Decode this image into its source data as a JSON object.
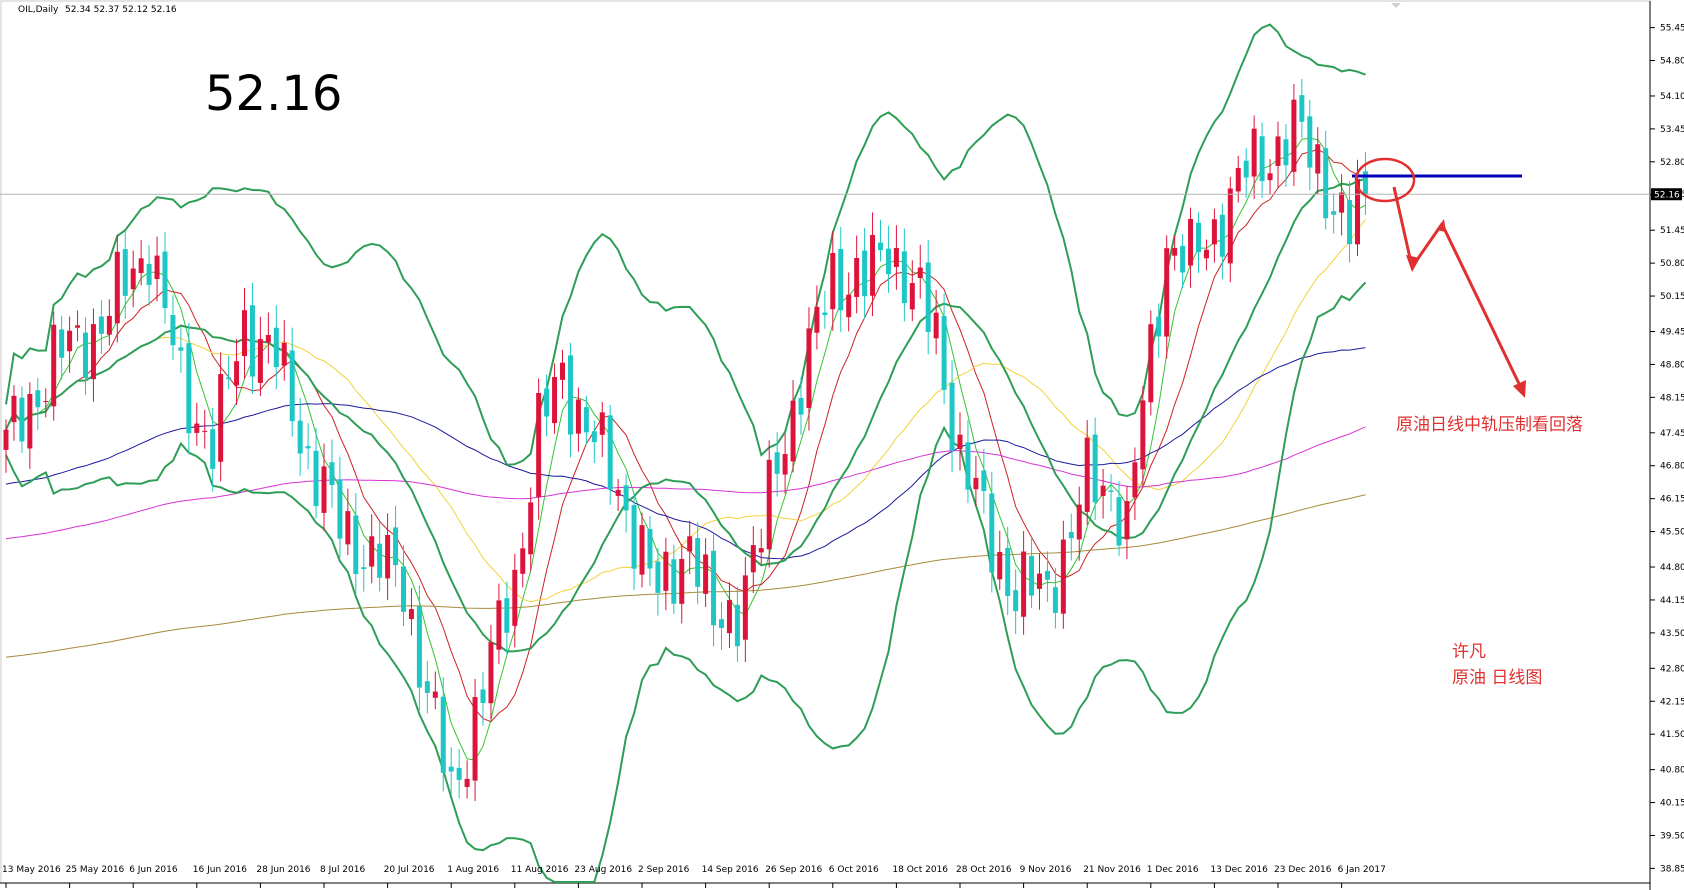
{
  "header": {
    "symbol": "OIL,Daily",
    "ohlc": "52.34 52.37 52.12 52.16"
  },
  "big_price": "52.16",
  "annotations": {
    "main": "原油日线中轨压制看回落",
    "author": "许凡",
    "subtitle": "原油 日线图"
  },
  "colors": {
    "bull_candle": "#dc143c",
    "bear_candle": "#1fc6c6",
    "bollinger": "#2e9e56",
    "ma_fast": "#33c433",
    "ma_red": "#cc2222",
    "ma_yellow": "#f2d23a",
    "ma_blue": "#1a1a9c",
    "ma_magenta": "#d633d6",
    "ma_brown": "#a88a3a",
    "annotation": "#e0302f",
    "resistance_line": "#0000bb"
  },
  "chart_data": {
    "type": "candlestick",
    "y_axis": {
      "ylim": [
        38.6,
        55.8
      ],
      "ticks": [
        "55.45",
        "54.80",
        "54.10",
        "53.45",
        "52.80",
        "52.16",
        "51.45",
        "50.80",
        "50.15",
        "49.45",
        "48.80",
        "48.15",
        "47.45",
        "46.80",
        "46.15",
        "45.50",
        "44.80",
        "44.15",
        "43.50",
        "42.80",
        "42.15",
        "41.50",
        "40.80",
        "40.15",
        "39.50",
        "38.85"
      ],
      "current_price_tag": "52.16"
    },
    "x_axis": {
      "labels": [
        "13 May 2016",
        "25 May 2016",
        "6 Jun 2016",
        "16 Jun 2016",
        "28 Jun 2016",
        "8 Jul 2016",
        "20 Jul 2016",
        "1 Aug 2016",
        "11 Aug 2016",
        "23 Aug 2016",
        "2 Sep 2016",
        "14 Sep 2016",
        "26 Sep 2016",
        "6 Oct 2016",
        "18 Oct 2016",
        "28 Oct 2016",
        "9 Nov 2016",
        "21 Nov 2016",
        "1 Dec 2016",
        "13 Dec 2016",
        "23 Dec 2016",
        "6 Jan 2017"
      ],
      "label_index": [
        0,
        8,
        16,
        24,
        32,
        40,
        48,
        56,
        64,
        72,
        80,
        88,
        96,
        104,
        112,
        120,
        128,
        136,
        144,
        152,
        160,
        168
      ]
    },
    "candle_count": 172,
    "close_anchors": [
      [
        0,
        47.2
      ],
      [
        6,
        48.9
      ],
      [
        12,
        49.6
      ],
      [
        18,
        51.2
      ],
      [
        22,
        48.4
      ],
      [
        26,
        47.2
      ],
      [
        30,
        49.6
      ],
      [
        34,
        48.9
      ],
      [
        38,
        47.0
      ],
      [
        42,
        45.6
      ],
      [
        46,
        45.0
      ],
      [
        50,
        44.5
      ],
      [
        53,
        42.3
      ],
      [
        56,
        40.3
      ],
      [
        60,
        42.4
      ],
      [
        64,
        44.6
      ],
      [
        67,
        47.5
      ],
      [
        70,
        48.6
      ],
      [
        74,
        47.3
      ],
      [
        78,
        46.0
      ],
      [
        82,
        44.2
      ],
      [
        86,
        45.4
      ],
      [
        89,
        43.6
      ],
      [
        92,
        44.1
      ],
      [
        95,
        45.3
      ],
      [
        97,
        47.0
      ],
      [
        100,
        48.4
      ],
      [
        104,
        50.6
      ],
      [
        108,
        50.4
      ],
      [
        111,
        51.2
      ],
      [
        114,
        50.3
      ],
      [
        117,
        49.4
      ],
      [
        120,
        47.0
      ],
      [
        124,
        45.3
      ],
      [
        127,
        44.3
      ],
      [
        131,
        44.4
      ],
      [
        134,
        45.5
      ],
      [
        136,
        46.5
      ],
      [
        139,
        46.4
      ],
      [
        141,
        45.5
      ],
      [
        143,
        48.0
      ],
      [
        146,
        51.2
      ],
      [
        149,
        50.8
      ],
      [
        152,
        51.5
      ],
      [
        156,
        52.6
      ],
      [
        159,
        53.0
      ],
      [
        162,
        53.4
      ],
      [
        165,
        52.8
      ],
      [
        167,
        52.0
      ],
      [
        169,
        51.4
      ],
      [
        171,
        52.16
      ]
    ],
    "bollinger_period": 20,
    "bollinger_deviation": 2,
    "moving_averages": [
      {
        "key": "ma_fast",
        "period": 5
      },
      {
        "key": "ma_red",
        "period": 10
      },
      {
        "key": "ma_yellow",
        "period": 30
      },
      {
        "key": "ma_blue",
        "period": 60
      },
      {
        "key": "ma_magenta",
        "period": 120
      },
      {
        "key": "ma_brown",
        "period": 250
      }
    ],
    "current_price": 52.16,
    "resistance_level": 52.52
  }
}
